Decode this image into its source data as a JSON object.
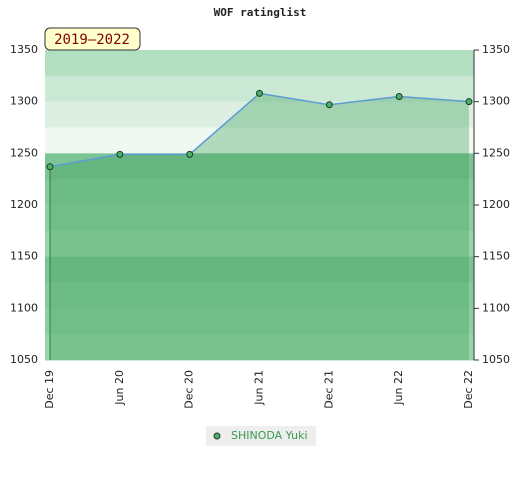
{
  "chart_data": {
    "type": "area",
    "title": "WOF ratinglist",
    "subtitle": "2019–2022",
    "categories": [
      "Dec 19",
      "Jun 20",
      "Dec 20",
      "Jun 21",
      "Dec 21",
      "Jun 22",
      "Dec 22"
    ],
    "series": [
      {
        "name": "SHINODA Yuki",
        "color": "#5b9bd5",
        "values": [
          1237,
          1249,
          1249,
          1308,
          1297,
          1305,
          1300
        ]
      }
    ],
    "ylim": [
      1050,
      1350
    ],
    "yticks": [
      1050,
      1100,
      1150,
      1200,
      1250,
      1300,
      1350
    ]
  }
}
